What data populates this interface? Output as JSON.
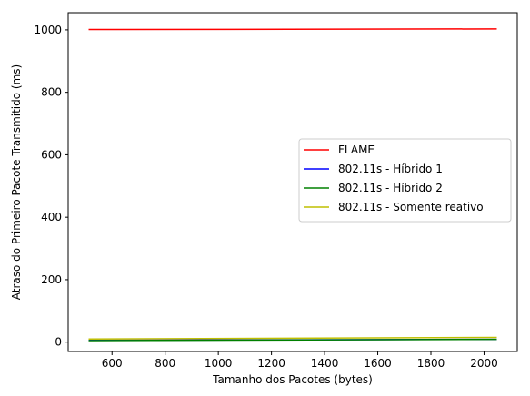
{
  "chart_data": {
    "type": "line",
    "title": "",
    "xlabel": "Tamanho dos Pacotes (bytes)",
    "ylabel": "Atraso do Primeiro Pacote Transmitido (ms)",
    "xlim": [
      435,
      2125
    ],
    "ylim": [
      -30,
      1055
    ],
    "xticks": [
      600,
      800,
      1000,
      1200,
      1400,
      1600,
      1800,
      2000
    ],
    "yticks": [
      0,
      200,
      400,
      600,
      800,
      1000
    ],
    "grid": false,
    "legend_position": "center-right",
    "x": [
      512,
      2048
    ],
    "series": [
      {
        "name": "FLAME",
        "color": "#ff0000",
        "values": [
          1001,
          1003
        ]
      },
      {
        "name": "802.11s - Híbrido 1",
        "color": "#0000ff",
        "values": [
          6,
          9
        ]
      },
      {
        "name": "802.11s - Híbrido 2",
        "color": "#008000",
        "values": [
          5,
          9
        ]
      },
      {
        "name": "802.11s - Somente reativo",
        "color": "#bfbf00",
        "values": [
          10,
          15
        ]
      }
    ]
  }
}
